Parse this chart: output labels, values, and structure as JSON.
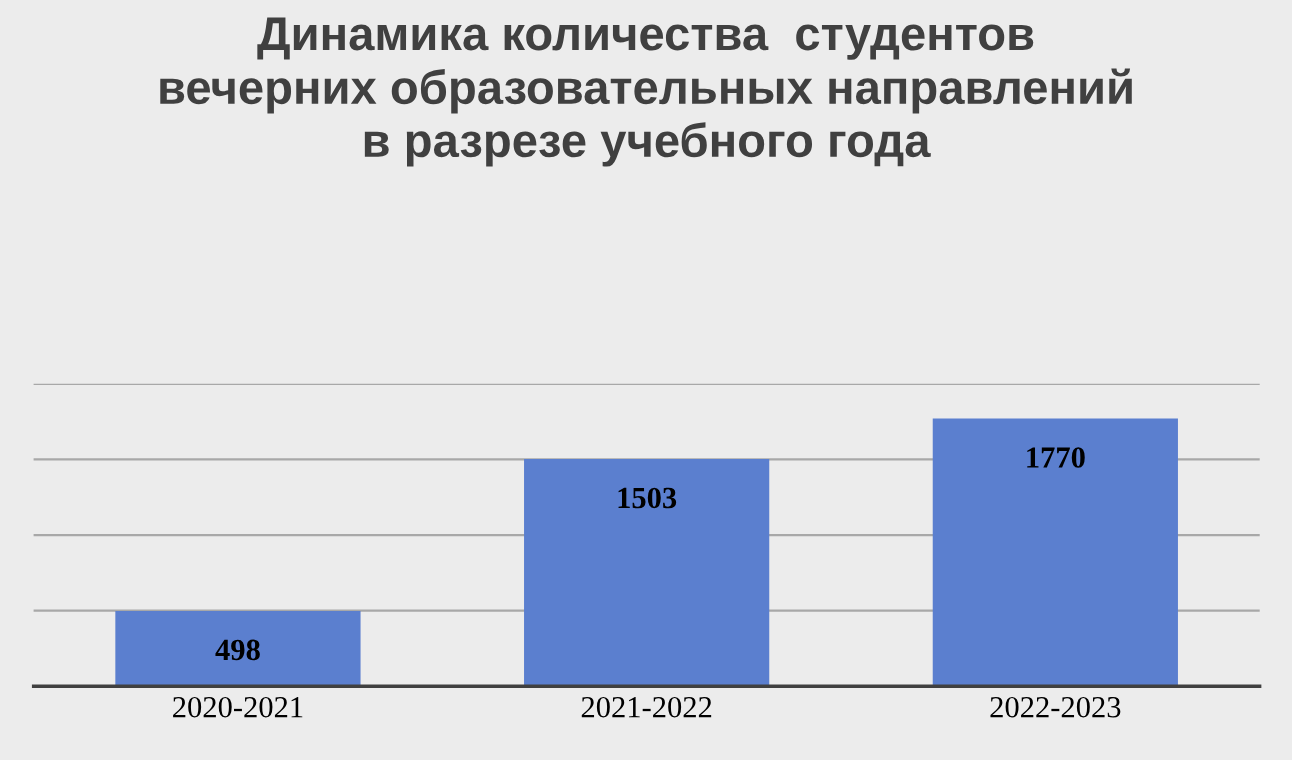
{
  "chart_data": {
    "type": "bar",
    "title": "Динамика количества  студентов\nвечерних образовательных направлений\nв разрезе учебного года",
    "categories": [
      "2020-2021",
      "2021-2022",
      "2022-2023"
    ],
    "values": [
      498,
      1503,
      1770
    ],
    "color": "#5b7fcf",
    "ylim": [
      0,
      2000
    ],
    "yticks": [
      {
        "value": 0,
        "label": null
      },
      {
        "value": 500,
        "label": null
      },
      {
        "value": 1000,
        "label": null
      },
      {
        "value": 1500,
        "label": null
      },
      {
        "value": 2000,
        "label": null
      }
    ],
    "tick_labels": "x",
    "grid": "y",
    "data_labels": true
  }
}
